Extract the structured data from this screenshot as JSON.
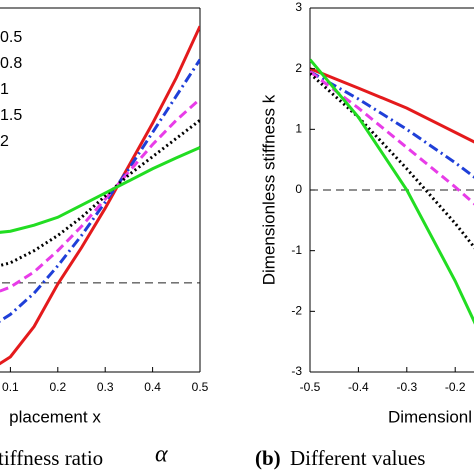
{
  "chart_data": [
    {
      "type": "line",
      "xlabel": "placement x",
      "caption": "tiffness ratio",
      "caption_symbol": "α",
      "x": [
        0.05,
        0.1,
        0.15,
        0.2,
        0.25,
        0.3,
        0.35,
        0.4,
        0.45,
        0.5
      ],
      "xlim": [
        0,
        0.5
      ],
      "xticks": [
        0.1,
        0.2,
        0.3,
        0.4,
        0.5
      ],
      "ylim": [
        -3,
        3
      ],
      "hline": -1.53,
      "legend": "upper left",
      "series": [
        {
          "name": "0.5",
          "color": "#e41a1c",
          "style": "solid",
          "values": [
            -3.0,
            -2.75,
            -2.25,
            -1.55,
            -0.95,
            -0.3,
            0.4,
            1.1,
            1.85,
            2.7
          ]
        },
        {
          "name": "0.8",
          "color": "#1f3fd8",
          "style": "dashdot",
          "values": [
            -2.3,
            -2.05,
            -1.7,
            -1.25,
            -0.75,
            -0.2,
            0.35,
            0.95,
            1.55,
            2.15
          ]
        },
        {
          "name": "1",
          "color": "#e83ce8",
          "style": "dashed",
          "values": [
            -1.75,
            -1.6,
            -1.35,
            -1.0,
            -0.6,
            -0.15,
            0.3,
            0.75,
            1.15,
            1.5
          ]
        },
        {
          "name": "1.5",
          "color": "#000000",
          "style": "dotted",
          "values": [
            -1.3,
            -1.2,
            -1.0,
            -0.75,
            -0.45,
            -0.1,
            0.25,
            0.55,
            0.85,
            1.15
          ]
        },
        {
          "name": "2",
          "color": "#22dd22",
          "style": "solid",
          "values": [
            -0.72,
            -0.68,
            -0.58,
            -0.45,
            -0.25,
            -0.05,
            0.15,
            0.35,
            0.53,
            0.7
          ]
        }
      ]
    },
    {
      "type": "line",
      "xlabel": "Dimensionl",
      "ylabel": "Dimensionless stiffness k",
      "caption_label": "(b)",
      "caption": "Different values",
      "x": [
        -0.5,
        -0.4,
        -0.3,
        -0.2,
        -0.15
      ],
      "xlim": [
        -0.5,
        0
      ],
      "xticks": [
        -0.5,
        -0.4,
        -0.3,
        -0.2
      ],
      "ylim": [
        -3,
        3
      ],
      "yticks": [
        3,
        2,
        1,
        0,
        -1,
        -2,
        -3
      ],
      "hline": 0,
      "series": [
        {
          "color": "#e41a1c",
          "style": "solid",
          "values": [
            2.0,
            1.68,
            1.35,
            0.95,
            0.75
          ]
        },
        {
          "color": "#1f3fd8",
          "style": "dashdot",
          "values": [
            1.95,
            1.5,
            1.0,
            0.45,
            0.15
          ]
        },
        {
          "color": "#e83ce8",
          "style": "dashed",
          "values": [
            1.95,
            1.35,
            0.7,
            0.05,
            -0.3
          ]
        },
        {
          "color": "#000000",
          "style": "dotted",
          "values": [
            1.92,
            1.2,
            0.35,
            -0.55,
            -1.05
          ]
        },
        {
          "color": "#22dd22",
          "style": "solid",
          "values": [
            2.15,
            1.2,
            0.0,
            -1.5,
            -2.35
          ]
        }
      ]
    }
  ]
}
